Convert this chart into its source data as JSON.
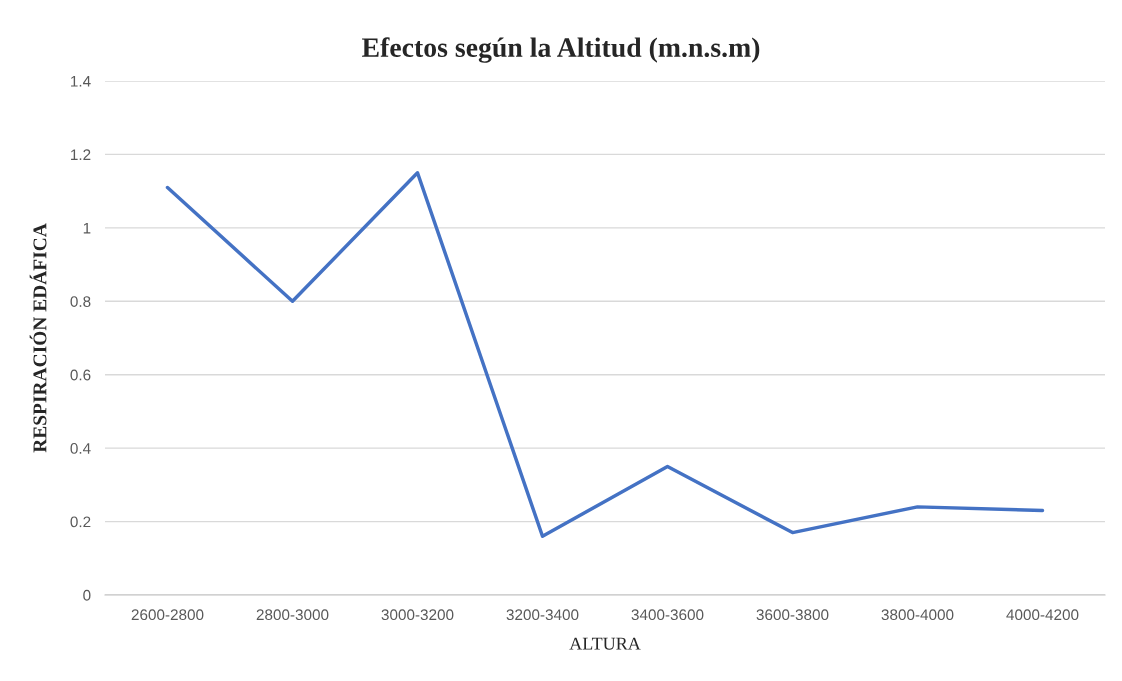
{
  "chart_data": {
    "type": "line",
    "title": "Efectos según la Altitud (m.n.s.m)",
    "xlabel": "ALTURA",
    "ylabel": "RESPIRACIÓN EDÁFICA",
    "categories": [
      "2600-2800",
      "2800-3000",
      "3000-3200",
      "3200-3400",
      "3400-3600",
      "3600-3800",
      "3800-4000",
      "4000-4200"
    ],
    "series": [
      {
        "color": "#4472c4",
        "values": [
          1.11,
          0.8,
          1.15,
          0.16,
          0.35,
          0.17,
          0.24,
          0.23
        ]
      }
    ],
    "ylim": [
      0,
      1.4
    ],
    "yticks": [
      0,
      0.2,
      0.4,
      0.6,
      0.8,
      1,
      1.2,
      1.4
    ],
    "grid": "y",
    "marker": "none",
    "line_style": "solid"
  }
}
